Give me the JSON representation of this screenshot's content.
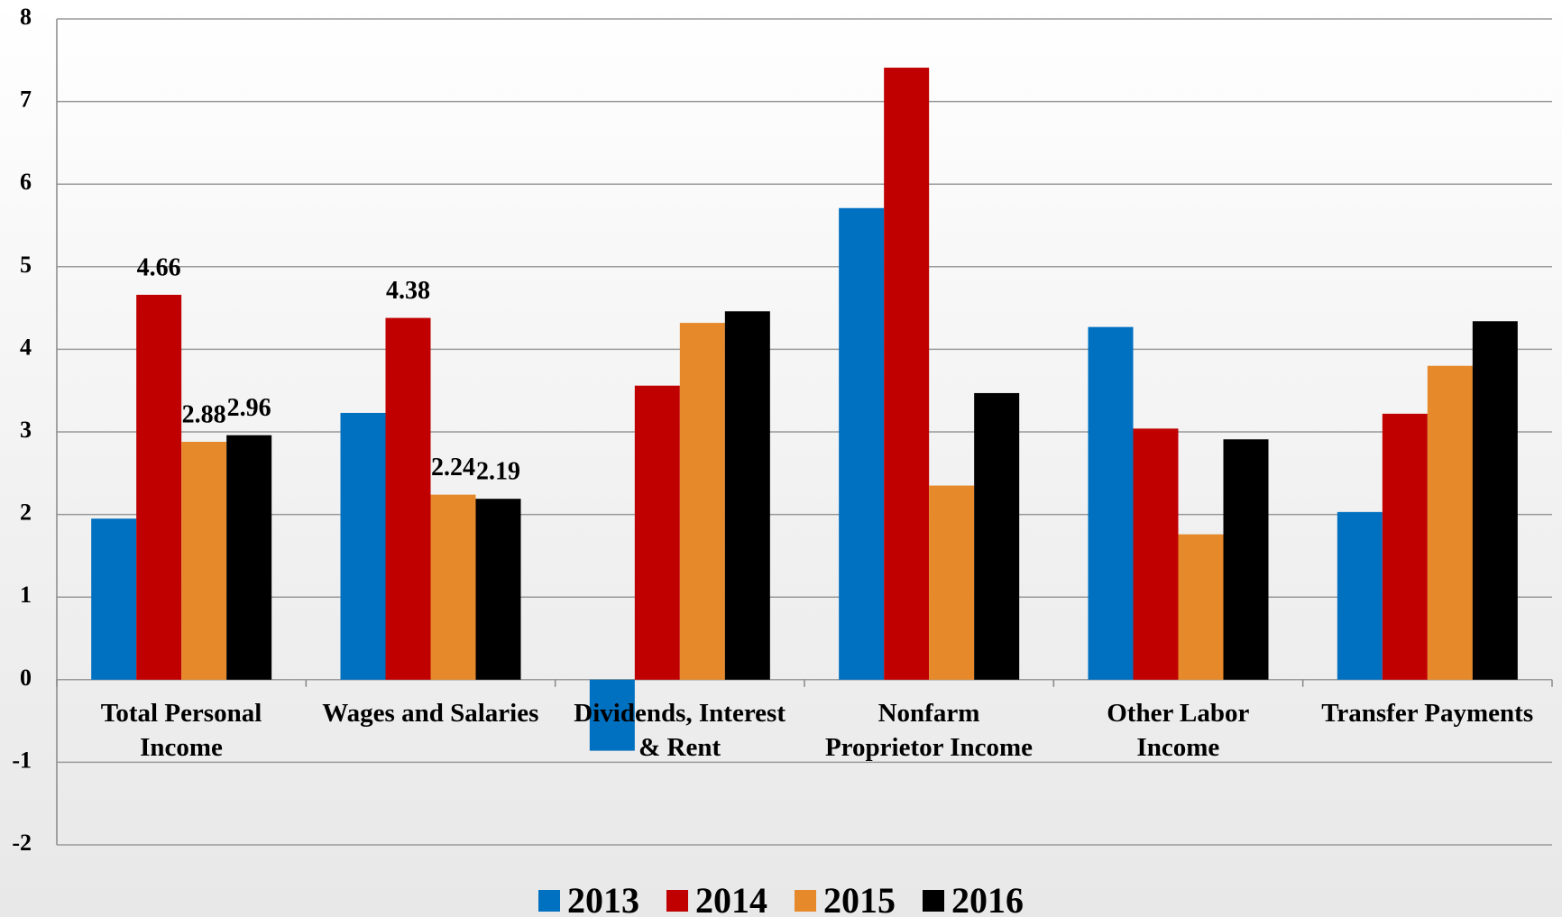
{
  "chart_data": {
    "type": "bar",
    "categories": [
      "Total Personal\nIncome",
      "Wages and Salaries",
      "Dividends, Interest\n& Rent",
      "Nonfarm\nProprietor Income",
      "Other Labor\nIncome",
      "Transfer Payments"
    ],
    "series": [
      {
        "name": "2013",
        "color": "#0070c0",
        "values": [
          1.95,
          3.23,
          -0.86,
          5.71,
          4.27,
          2.03
        ]
      },
      {
        "name": "2014",
        "color": "#c00000",
        "values": [
          4.66,
          4.38,
          3.56,
          7.41,
          3.04,
          3.22
        ],
        "value_labels": [
          "4.66",
          "4.38",
          null,
          null,
          null,
          null
        ]
      },
      {
        "name": "2015",
        "color": "#e6892a",
        "values": [
          2.88,
          2.24,
          4.32,
          2.35,
          1.76,
          3.8
        ],
        "value_labels": [
          "2.88",
          "2.24",
          null,
          null,
          null,
          null
        ]
      },
      {
        "name": "2016",
        "color": "#000000",
        "values": [
          2.96,
          2.19,
          4.46,
          3.47,
          2.91,
          4.34
        ],
        "value_labels": [
          "2.96",
          "2.19",
          null,
          null,
          null,
          null
        ]
      }
    ],
    "ylim": [
      -2,
      8
    ],
    "yticks": [
      -2,
      -1,
      0,
      1,
      2,
      3,
      4,
      5,
      6,
      7,
      8
    ],
    "grid": true,
    "legend": "bottom"
  }
}
